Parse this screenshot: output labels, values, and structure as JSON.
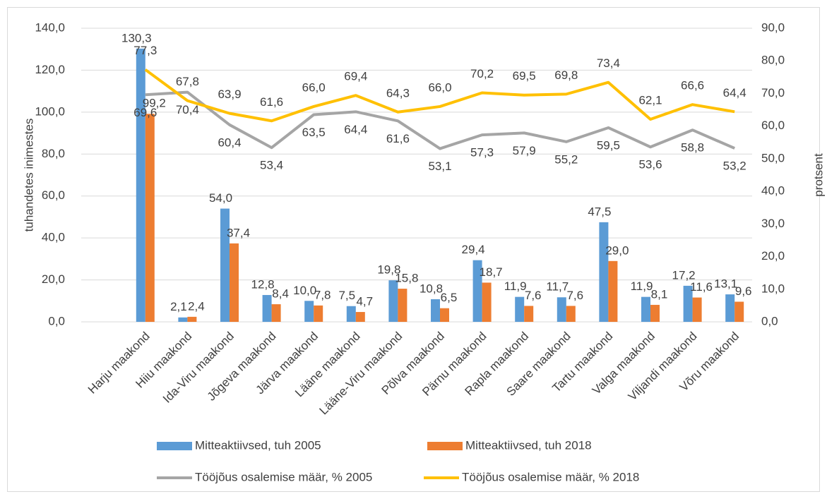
{
  "chart_data": {
    "type": "bar",
    "y_label": "tuhandetes inimestes",
    "y2_label": "protsent",
    "categories": [
      "Harju maakond",
      "Hiiu maakond",
      "Ida-Viru maakond",
      "Jõgeva maakond",
      "Järva maakond",
      "Lääne maakond",
      "Lääne-Viru maakond",
      "Põlva maakond",
      "Pärnu maakond",
      "Rapla maakond",
      "Saare maakond",
      "Tartu maakond",
      "Valga maakond",
      "Viljandi maakond",
      "Võru maakond"
    ],
    "series": [
      {
        "name": "Mitteaktiivsed, tuh 2005",
        "type": "bar",
        "color": "#5b9bd5",
        "values": [
          130.3,
          2.1,
          54.0,
          12.8,
          10.0,
          7.5,
          19.8,
          10.8,
          29.4,
          11.9,
          11.7,
          47.5,
          11.9,
          17.2,
          13.1
        ],
        "value_labels": [
          "130,3",
          "2,1",
          "54,0",
          "12,8",
          "10,0",
          "7,5",
          "19,8",
          "10,8",
          "29,4",
          "11,9",
          "11,7",
          "47,5",
          "11,9",
          "17,2",
          "13,1"
        ]
      },
      {
        "name": "Mitteaktiivsed, tuh 2018",
        "type": "bar",
        "color": "#ed7d31",
        "values": [
          99.2,
          2.4,
          37.4,
          8.4,
          7.8,
          4.7,
          15.8,
          6.5,
          18.7,
          7.6,
          7.6,
          29.0,
          8.1,
          11.6,
          9.6
        ],
        "value_labels": [
          "99,2",
          "2,4",
          "37,4",
          "8,4",
          "7,8",
          "4,7",
          "15,8",
          "6,5",
          "18,7",
          "7,6",
          "7,6",
          "29,0",
          "8,1",
          "11,6",
          "9,6"
        ]
      },
      {
        "name": "Tööjõus osalemise määr, % 2005",
        "type": "line",
        "axis": "y2",
        "color": "#a5a5a5",
        "values": [
          69.6,
          70.4,
          60.4,
          53.4,
          63.5,
          64.4,
          61.6,
          53.1,
          57.3,
          57.9,
          55.2,
          59.5,
          53.6,
          58.8,
          53.2
        ],
        "value_labels": [
          "69,6",
          "70,4",
          "60,4",
          "53,4",
          "63,5",
          "64,4",
          "61,6",
          "53,1",
          "57,3",
          "57,9",
          "55,2",
          "59,5",
          "53,6",
          "58,8",
          "53,2"
        ]
      },
      {
        "name": "Tööjõus osalemise määr, % 2018",
        "type": "line",
        "axis": "y2",
        "color": "#ffc000",
        "values": [
          77.3,
          67.8,
          63.9,
          61.6,
          66.0,
          69.4,
          64.3,
          66.0,
          70.2,
          69.5,
          69.8,
          73.4,
          62.1,
          66.6,
          64.4
        ],
        "value_labels": [
          "77,3",
          "67,8",
          "63,9",
          "61,6",
          "66,0",
          "69,4",
          "64,3",
          "66,0",
          "70,2",
          "69,5",
          "69,8",
          "73,4",
          "62,1",
          "66,6",
          "64,4"
        ]
      }
    ],
    "ylim": [
      0,
      140
    ],
    "yticks": [
      {
        "value": 0,
        "label": "0,0"
      },
      {
        "value": 20,
        "label": "20,0"
      },
      {
        "value": 40,
        "label": "40,0"
      },
      {
        "value": 60,
        "label": "60,0"
      },
      {
        "value": 80,
        "label": "80,0"
      },
      {
        "value": 100,
        "label": "100,0"
      },
      {
        "value": 120,
        "label": "120,0"
      },
      {
        "value": 140,
        "label": "140,0"
      }
    ],
    "y2lim": [
      0,
      90
    ],
    "y2ticks": [
      {
        "value": 0,
        "label": "0,0"
      },
      {
        "value": 10,
        "label": "10,0"
      },
      {
        "value": 20,
        "label": "20,0"
      },
      {
        "value": 30,
        "label": "30,0"
      },
      {
        "value": 40,
        "label": "40,0"
      },
      {
        "value": 50,
        "label": "50,0"
      },
      {
        "value": 60,
        "label": "60,0"
      },
      {
        "value": 70,
        "label": "70,0"
      },
      {
        "value": 80,
        "label": "80,0"
      },
      {
        "value": 90,
        "label": "90,0"
      }
    ],
    "grid": true
  }
}
